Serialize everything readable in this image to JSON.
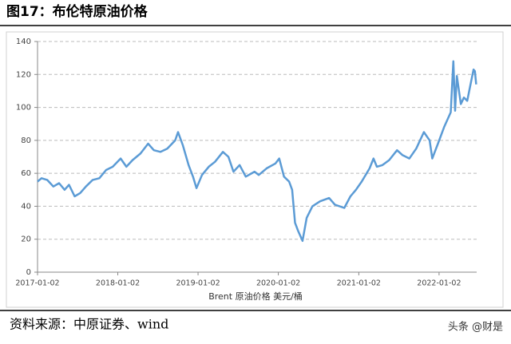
{
  "chart_data": {
    "type": "line",
    "title": "图17：布伦特原油价格",
    "source": "资料来源：中原证券、wind",
    "watermark": "头条 @财是",
    "x": [
      "2017-01-02",
      "2017-01-20",
      "2017-02-15",
      "2017-03-15",
      "2017-04-10",
      "2017-05-05",
      "2017-05-25",
      "2017-06-20",
      "2017-07-15",
      "2017-08-10",
      "2017-09-10",
      "2017-10-10",
      "2017-11-10",
      "2017-12-10",
      "2018-01-15",
      "2018-02-10",
      "2018-03-10",
      "2018-04-15",
      "2018-05-20",
      "2018-06-15",
      "2018-07-15",
      "2018-08-15",
      "2018-09-20",
      "2018-10-03",
      "2018-10-25",
      "2018-11-20",
      "2018-12-10",
      "2018-12-26",
      "2019-01-20",
      "2019-02-20",
      "2019-03-20",
      "2019-04-25",
      "2019-05-20",
      "2019-06-12",
      "2019-07-10",
      "2019-08-07",
      "2019-09-16",
      "2019-10-05",
      "2019-11-10",
      "2019-12-20",
      "2020-01-06",
      "2020-01-28",
      "2020-02-20",
      "2020-03-05",
      "2020-03-18",
      "2020-04-01",
      "2020-04-21",
      "2020-05-10",
      "2020-06-05",
      "2020-07-10",
      "2020-08-20",
      "2020-09-15",
      "2020-10-28",
      "2020-11-25",
      "2020-12-20",
      "2021-01-15",
      "2021-02-20",
      "2021-03-10",
      "2021-03-25",
      "2021-04-20",
      "2021-05-20",
      "2021-06-25",
      "2021-07-20",
      "2021-08-20",
      "2021-09-20",
      "2021-10-25",
      "2021-11-20",
      "2021-12-02",
      "2021-12-28",
      "2022-01-25",
      "2022-02-24",
      "2022-03-08",
      "2022-03-16",
      "2022-03-24",
      "2022-04-11",
      "2022-04-25",
      "2022-05-10",
      "2022-05-25",
      "2022-06-08",
      "2022-06-14",
      "2022-06-20"
    ],
    "series": [
      {
        "name": "Brent 原油价格 美元/桶",
        "color": "#5b9bd5",
        "values": [
          55,
          57,
          56,
          52,
          54,
          50,
          53,
          46,
          48,
          52,
          56,
          57,
          62,
          64,
          69,
          64,
          68,
          72,
          78,
          74,
          73,
          75,
          80,
          85,
          77,
          65,
          58,
          51,
          59,
          64,
          67,
          73,
          70,
          61,
          65,
          58,
          61,
          59,
          63,
          66,
          69,
          58,
          55,
          50,
          30,
          25,
          19,
          33,
          40,
          43,
          45,
          41,
          39,
          46,
          50,
          55,
          63,
          69,
          64,
          65,
          68,
          74,
          71,
          69,
          75,
          85,
          80,
          69,
          78,
          88,
          97,
          128,
          98,
          119,
          102,
          106,
          104,
          114,
          123,
          122,
          114
        ]
      }
    ],
    "xlim": [
      "2017-01-02",
      "2022-06-22"
    ],
    "xticks": [
      "2017-01-02",
      "2018-01-02",
      "2019-01-02",
      "2020-01-02",
      "2021-01-02",
      "2022-01-02"
    ],
    "ylim": [
      0,
      140
    ],
    "yticks": [
      0,
      20,
      40,
      60,
      80,
      100,
      120,
      140
    ],
    "grid": true
  }
}
